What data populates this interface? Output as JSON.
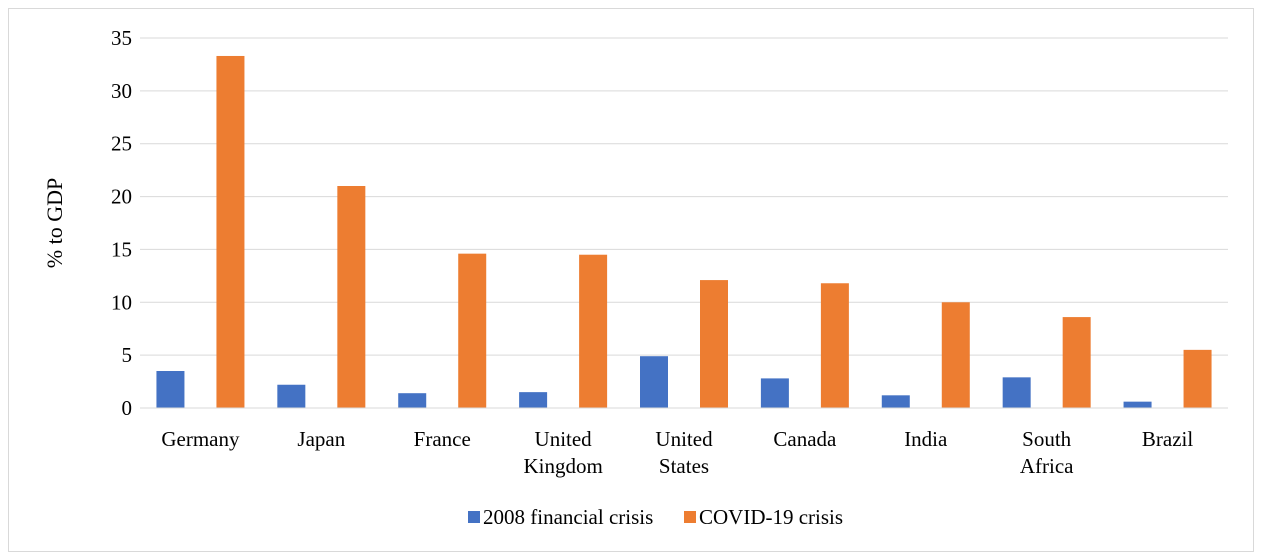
{
  "chart_data": {
    "type": "bar",
    "title": "",
    "xlabel": "",
    "ylabel": "% to GDP",
    "ylim": [
      0,
      35
    ],
    "yticks": [
      0,
      5,
      10,
      15,
      20,
      25,
      30,
      35
    ],
    "grid": true,
    "legend_position": "bottom",
    "categories": [
      [
        "Germany"
      ],
      [
        "Japan"
      ],
      [
        "France"
      ],
      [
        "United",
        "Kingdom"
      ],
      [
        "United",
        "States"
      ],
      [
        "Canada"
      ],
      [
        "India"
      ],
      [
        "South",
        "Africa"
      ],
      [
        "Brazil"
      ]
    ],
    "series": [
      {
        "name": "2008 financial crisis",
        "color": "#4472c4",
        "values": [
          3.5,
          2.2,
          1.4,
          1.5,
          4.9,
          2.8,
          1.2,
          2.9,
          0.6
        ]
      },
      {
        "name": "COVID-19 crisis",
        "color": "#ed7d31",
        "values": [
          33.3,
          21.0,
          14.6,
          14.5,
          12.1,
          11.8,
          10.0,
          8.6,
          5.5
        ]
      }
    ]
  }
}
